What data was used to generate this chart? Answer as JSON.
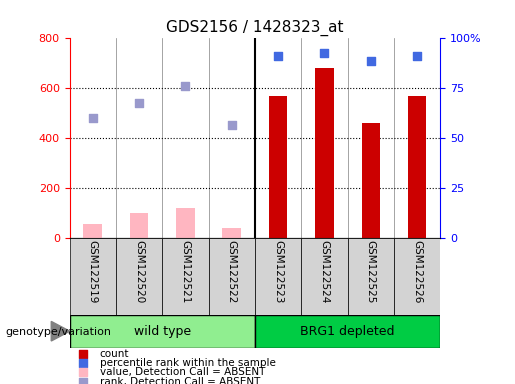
{
  "title": "GDS2156 / 1428323_at",
  "samples": [
    "GSM122519",
    "GSM122520",
    "GSM122521",
    "GSM122522",
    "GSM122523",
    "GSM122524",
    "GSM122525",
    "GSM122526"
  ],
  "count_values": [
    0,
    0,
    0,
    0,
    570,
    680,
    460,
    570
  ],
  "count_absent": [
    55,
    100,
    120,
    40,
    0,
    0,
    0,
    0
  ],
  "rank_values": [
    0,
    0,
    0,
    0,
    730,
    740,
    710,
    730
  ],
  "rank_absent": [
    480,
    540,
    610,
    455,
    0,
    0,
    0,
    0
  ],
  "ylim_left": [
    0,
    800
  ],
  "ylim_right": [
    0,
    100
  ],
  "yticks_left": [
    0,
    200,
    400,
    600,
    800
  ],
  "yticks_right": [
    0,
    25,
    50,
    75,
    100
  ],
  "ytick_right_labels": [
    "0",
    "25",
    "50",
    "75",
    "100%"
  ],
  "bar_width": 0.4,
  "red_color": "#cc0000",
  "pink_color": "#ffb6c1",
  "blue_color": "#4169e1",
  "lightblue_color": "#9999cc",
  "bg_color": "#d3d3d3",
  "group_label": "genotype/variation",
  "group1_label": "wild type",
  "group2_label": "BRG1 depleted",
  "group1_bg": "#90EE90",
  "group2_bg": "#00CC44",
  "legend_items": [
    {
      "color": "#cc0000",
      "label": "count"
    },
    {
      "color": "#4169e1",
      "label": "percentile rank within the sample"
    },
    {
      "color": "#ffb6c1",
      "label": "value, Detection Call = ABSENT"
    },
    {
      "color": "#9999cc",
      "label": "rank, Detection Call = ABSENT"
    }
  ]
}
